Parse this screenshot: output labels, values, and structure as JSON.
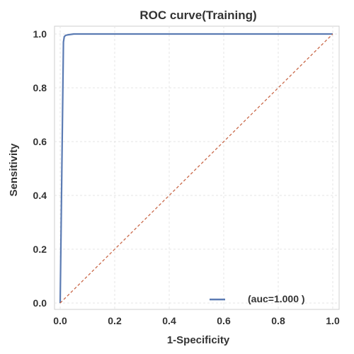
{
  "chart_data": {
    "type": "line",
    "title": "ROC curve(Training)",
    "xlabel": "1-Specificity",
    "ylabel": "Sensitivity",
    "xlim": [
      0,
      1
    ],
    "ylim": [
      0,
      1
    ],
    "xticks": [
      0.0,
      0.2,
      0.4,
      0.6,
      0.8,
      1.0
    ],
    "yticks": [
      0.0,
      0.2,
      0.4,
      0.6,
      0.8,
      1.0
    ],
    "tick_labels_x": [
      "0.0",
      "0.2",
      "0.4",
      "0.6",
      "0.8",
      "1.0"
    ],
    "tick_labels_y": [
      "0.0",
      "0.2",
      "0.4",
      "0.6",
      "0.8",
      "1.0"
    ],
    "grid": true,
    "legend_position": "lower-right",
    "legend_text": "(auc=1.000 )",
    "series": [
      {
        "color": "#5b7bb3",
        "style": "solid",
        "x": [
          0.0,
          0.012,
          0.015,
          0.02,
          0.03,
          0.05,
          1.0
        ],
        "y": [
          0.0,
          0.97,
          0.99,
          0.995,
          0.997,
          1.0,
          1.0
        ]
      },
      {
        "color": "#c9694a",
        "style": "dashed",
        "x": [
          0.0,
          1.0
        ],
        "y": [
          0.0,
          1.0
        ]
      }
    ]
  }
}
